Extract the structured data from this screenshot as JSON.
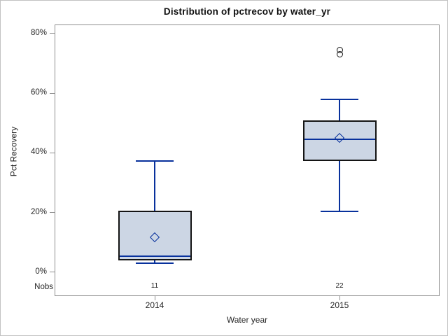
{
  "chart_data": {
    "type": "boxplot",
    "title": "Distribution of pctrecov by water_yr",
    "xlabel": "Water year",
    "ylabel": "Pct Recovery",
    "ylim": [
      -8,
      83
    ],
    "yticks": [
      0,
      20,
      40,
      60,
      80
    ],
    "ytick_labels": [
      "0%",
      "20%",
      "40%",
      "60%",
      "80%"
    ],
    "grid": false,
    "legend": false,
    "nobs_row_label": "Nobs",
    "categories": [
      "2014",
      "2015"
    ],
    "series": [
      {
        "category": "2014",
        "nobs": "11",
        "whisker_low": 3,
        "q1": 4,
        "median": 5.4,
        "q3": 20.6,
        "whisker_high": 37.3,
        "mean": 11.5,
        "outliers": []
      },
      {
        "category": "2015",
        "nobs": "22",
        "whisker_low": 20.4,
        "q1": 37.2,
        "median": 44.5,
        "q3": 50.8,
        "whisker_high": 57.8,
        "mean": 44.8,
        "outliers": [
          73,
          74.5
        ]
      }
    ]
  },
  "colors": {
    "box_fill": "#ccd6e4",
    "box_border": "#141414",
    "line": "#08319c",
    "outlier_stroke": "#141414",
    "axis": "#8f8f8f",
    "text": "#262626",
    "frame": "#c2c2c2"
  }
}
